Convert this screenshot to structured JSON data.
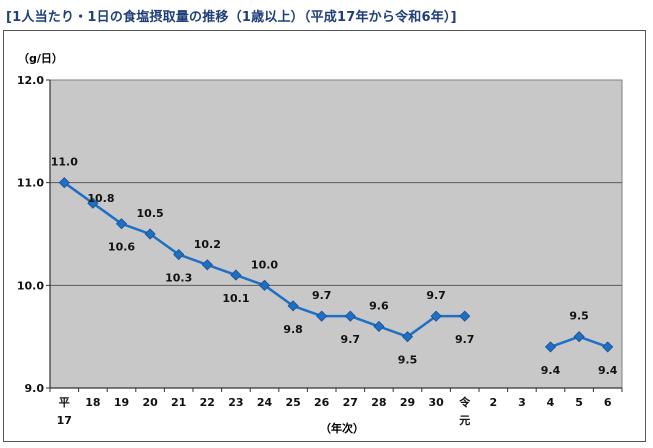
{
  "title": "[1人当たり・1日の食塩摂取量の推移（1歳以上）（平成17年から令和6年）]",
  "chart_data": {
    "type": "line",
    "title": "[1人当たり・1日の食塩摂取量の推移（1歳以上）（平成17年から令和6年）]",
    "ylabel": "（g/日）",
    "xlabel": "（年次）",
    "ylim": [
      9.0,
      12.0
    ],
    "yticks": [
      "9.0",
      "10.0",
      "11.0",
      "12.0"
    ],
    "grid": true,
    "categories": [
      "平17",
      "18",
      "19",
      "20",
      "21",
      "22",
      "23",
      "24",
      "25",
      "26",
      "27",
      "28",
      "29",
      "30",
      "令元",
      "2",
      "3",
      "4",
      "5",
      "6"
    ],
    "series": [
      {
        "values": [
          11.0,
          10.8,
          10.6,
          10.5,
          10.3,
          10.2,
          10.1,
          10.0,
          9.8,
          9.7,
          9.7,
          9.6,
          9.5,
          9.7,
          9.7,
          null,
          null,
          9.4,
          9.5,
          9.4
        ],
        "labels": [
          "11.0",
          "10.8",
          "10.6",
          "10.5",
          "10.3",
          "10.2",
          "10.1",
          "10.0",
          "9.8",
          "9.7",
          "9.7",
          "9.6",
          "9.5",
          "9.7",
          "9.7",
          "",
          "",
          "9.4",
          "9.5",
          "9.4"
        ],
        "color": "#1f6fc4"
      }
    ]
  }
}
